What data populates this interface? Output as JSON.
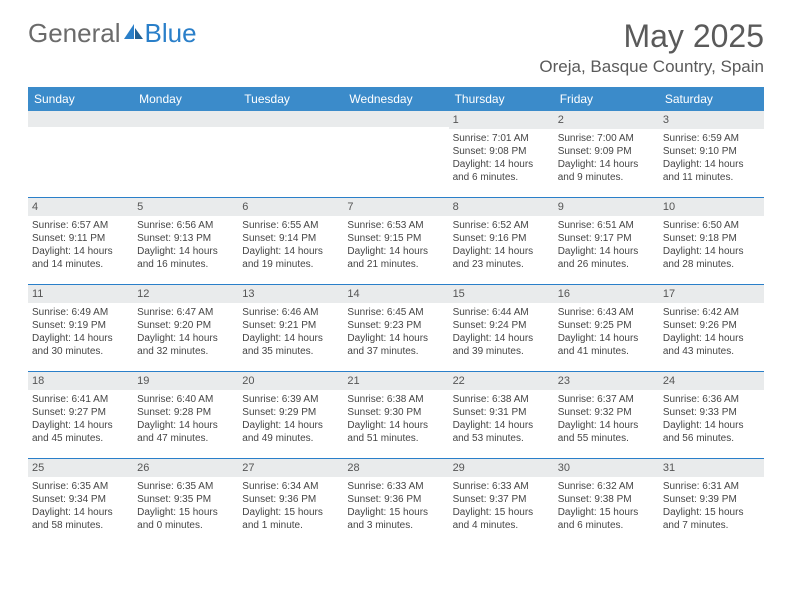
{
  "brand": {
    "word1": "General",
    "word2": "Blue"
  },
  "title": "May 2025",
  "location": "Oreja, Basque Country, Spain",
  "colors": {
    "header_bg": "#3b8bca",
    "header_text": "#ffffff",
    "daynum_bg": "#e9ebec",
    "divider": "#2a7fc9",
    "body_text": "#454545",
    "title_text": "#5a5a5a"
  },
  "day_names": [
    "Sunday",
    "Monday",
    "Tuesday",
    "Wednesday",
    "Thursday",
    "Friday",
    "Saturday"
  ],
  "weeks": [
    [
      {
        "n": "",
        "s": "",
        "t": "",
        "d": ""
      },
      {
        "n": "",
        "s": "",
        "t": "",
        "d": ""
      },
      {
        "n": "",
        "s": "",
        "t": "",
        "d": ""
      },
      {
        "n": "",
        "s": "",
        "t": "",
        "d": ""
      },
      {
        "n": "1",
        "s": "Sunrise: 7:01 AM",
        "t": "Sunset: 9:08 PM",
        "d": "Daylight: 14 hours and 6 minutes."
      },
      {
        "n": "2",
        "s": "Sunrise: 7:00 AM",
        "t": "Sunset: 9:09 PM",
        "d": "Daylight: 14 hours and 9 minutes."
      },
      {
        "n": "3",
        "s": "Sunrise: 6:59 AM",
        "t": "Sunset: 9:10 PM",
        "d": "Daylight: 14 hours and 11 minutes."
      }
    ],
    [
      {
        "n": "4",
        "s": "Sunrise: 6:57 AM",
        "t": "Sunset: 9:11 PM",
        "d": "Daylight: 14 hours and 14 minutes."
      },
      {
        "n": "5",
        "s": "Sunrise: 6:56 AM",
        "t": "Sunset: 9:13 PM",
        "d": "Daylight: 14 hours and 16 minutes."
      },
      {
        "n": "6",
        "s": "Sunrise: 6:55 AM",
        "t": "Sunset: 9:14 PM",
        "d": "Daylight: 14 hours and 19 minutes."
      },
      {
        "n": "7",
        "s": "Sunrise: 6:53 AM",
        "t": "Sunset: 9:15 PM",
        "d": "Daylight: 14 hours and 21 minutes."
      },
      {
        "n": "8",
        "s": "Sunrise: 6:52 AM",
        "t": "Sunset: 9:16 PM",
        "d": "Daylight: 14 hours and 23 minutes."
      },
      {
        "n": "9",
        "s": "Sunrise: 6:51 AM",
        "t": "Sunset: 9:17 PM",
        "d": "Daylight: 14 hours and 26 minutes."
      },
      {
        "n": "10",
        "s": "Sunrise: 6:50 AM",
        "t": "Sunset: 9:18 PM",
        "d": "Daylight: 14 hours and 28 minutes."
      }
    ],
    [
      {
        "n": "11",
        "s": "Sunrise: 6:49 AM",
        "t": "Sunset: 9:19 PM",
        "d": "Daylight: 14 hours and 30 minutes."
      },
      {
        "n": "12",
        "s": "Sunrise: 6:47 AM",
        "t": "Sunset: 9:20 PM",
        "d": "Daylight: 14 hours and 32 minutes."
      },
      {
        "n": "13",
        "s": "Sunrise: 6:46 AM",
        "t": "Sunset: 9:21 PM",
        "d": "Daylight: 14 hours and 35 minutes."
      },
      {
        "n": "14",
        "s": "Sunrise: 6:45 AM",
        "t": "Sunset: 9:23 PM",
        "d": "Daylight: 14 hours and 37 minutes."
      },
      {
        "n": "15",
        "s": "Sunrise: 6:44 AM",
        "t": "Sunset: 9:24 PM",
        "d": "Daylight: 14 hours and 39 minutes."
      },
      {
        "n": "16",
        "s": "Sunrise: 6:43 AM",
        "t": "Sunset: 9:25 PM",
        "d": "Daylight: 14 hours and 41 minutes."
      },
      {
        "n": "17",
        "s": "Sunrise: 6:42 AM",
        "t": "Sunset: 9:26 PM",
        "d": "Daylight: 14 hours and 43 minutes."
      }
    ],
    [
      {
        "n": "18",
        "s": "Sunrise: 6:41 AM",
        "t": "Sunset: 9:27 PM",
        "d": "Daylight: 14 hours and 45 minutes."
      },
      {
        "n": "19",
        "s": "Sunrise: 6:40 AM",
        "t": "Sunset: 9:28 PM",
        "d": "Daylight: 14 hours and 47 minutes."
      },
      {
        "n": "20",
        "s": "Sunrise: 6:39 AM",
        "t": "Sunset: 9:29 PM",
        "d": "Daylight: 14 hours and 49 minutes."
      },
      {
        "n": "21",
        "s": "Sunrise: 6:38 AM",
        "t": "Sunset: 9:30 PM",
        "d": "Daylight: 14 hours and 51 minutes."
      },
      {
        "n": "22",
        "s": "Sunrise: 6:38 AM",
        "t": "Sunset: 9:31 PM",
        "d": "Daylight: 14 hours and 53 minutes."
      },
      {
        "n": "23",
        "s": "Sunrise: 6:37 AM",
        "t": "Sunset: 9:32 PM",
        "d": "Daylight: 14 hours and 55 minutes."
      },
      {
        "n": "24",
        "s": "Sunrise: 6:36 AM",
        "t": "Sunset: 9:33 PM",
        "d": "Daylight: 14 hours and 56 minutes."
      }
    ],
    [
      {
        "n": "25",
        "s": "Sunrise: 6:35 AM",
        "t": "Sunset: 9:34 PM",
        "d": "Daylight: 14 hours and 58 minutes."
      },
      {
        "n": "26",
        "s": "Sunrise: 6:35 AM",
        "t": "Sunset: 9:35 PM",
        "d": "Daylight: 15 hours and 0 minutes."
      },
      {
        "n": "27",
        "s": "Sunrise: 6:34 AM",
        "t": "Sunset: 9:36 PM",
        "d": "Daylight: 15 hours and 1 minute."
      },
      {
        "n": "28",
        "s": "Sunrise: 6:33 AM",
        "t": "Sunset: 9:36 PM",
        "d": "Daylight: 15 hours and 3 minutes."
      },
      {
        "n": "29",
        "s": "Sunrise: 6:33 AM",
        "t": "Sunset: 9:37 PM",
        "d": "Daylight: 15 hours and 4 minutes."
      },
      {
        "n": "30",
        "s": "Sunrise: 6:32 AM",
        "t": "Sunset: 9:38 PM",
        "d": "Daylight: 15 hours and 6 minutes."
      },
      {
        "n": "31",
        "s": "Sunrise: 6:31 AM",
        "t": "Sunset: 9:39 PM",
        "d": "Daylight: 15 hours and 7 minutes."
      }
    ]
  ]
}
